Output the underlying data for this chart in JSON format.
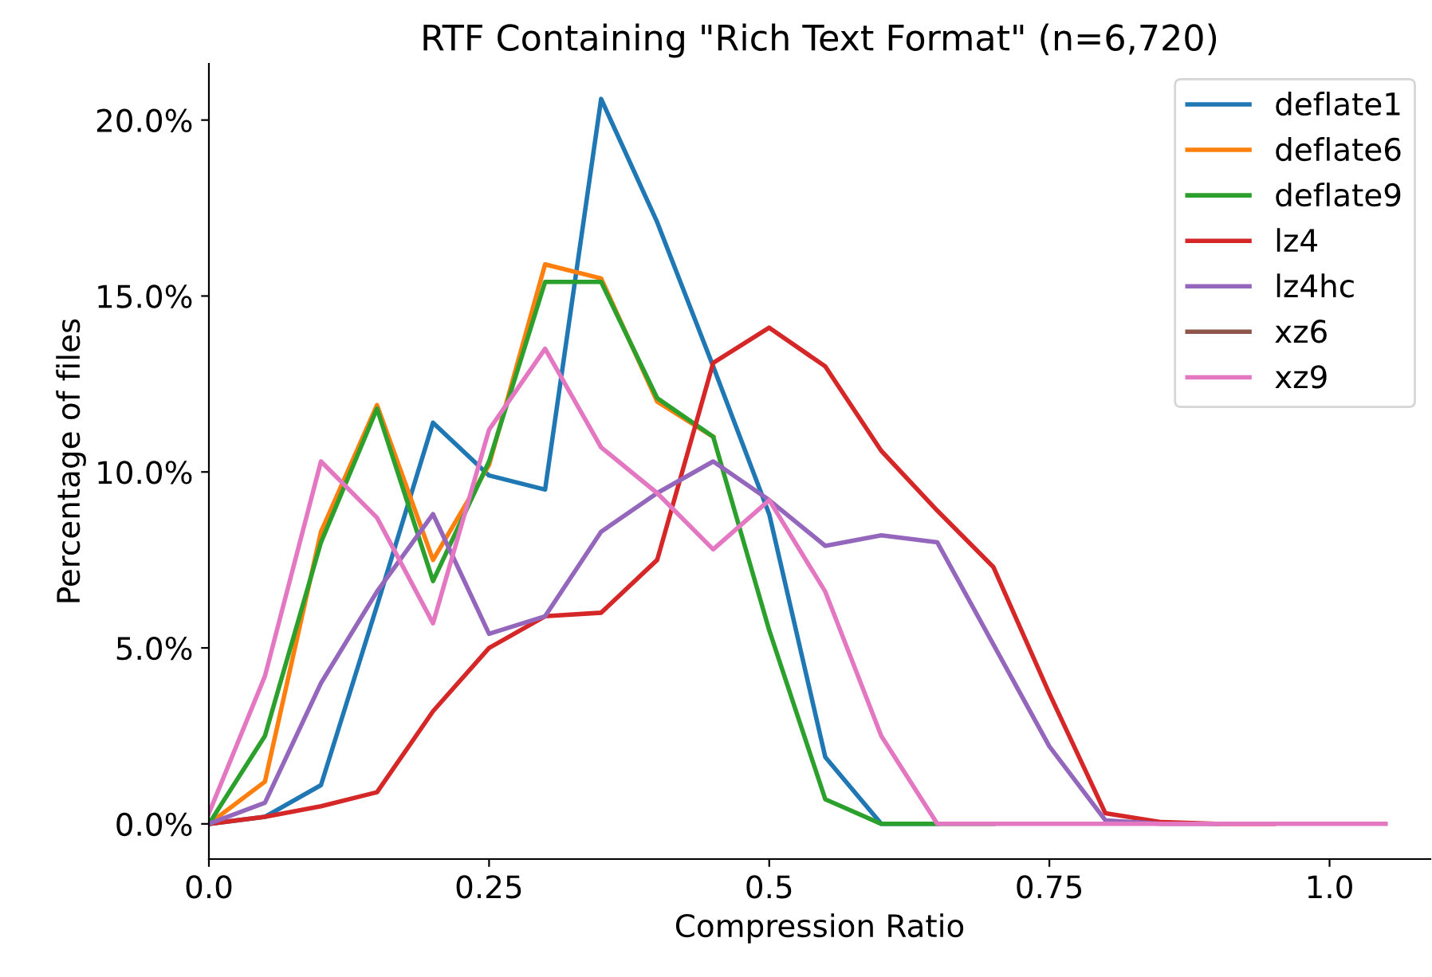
{
  "chart_data": {
    "type": "line",
    "title": "RTF Containing \"Rich Text Format\" (n=6,720)",
    "xlabel": "Compression Ratio",
    "ylabel": "Percentage of files",
    "x": [
      0,
      0.05,
      0.1,
      0.15,
      0.2,
      0.25,
      0.3,
      0.35,
      0.4,
      0.45,
      0.5,
      0.55,
      0.6,
      0.65,
      0.7,
      0.75,
      0.8,
      0.85,
      0.9,
      0.95,
      1.0,
      1.05
    ],
    "series": [
      {
        "name": "deflate1",
        "color": "#1f77b4",
        "values": [
          0,
          0.2,
          1.1,
          6.2,
          11.4,
          9.9,
          9.5,
          20.6,
          17.1,
          13.0,
          8.8,
          1.9,
          0,
          0,
          null,
          null,
          null,
          null,
          null,
          null,
          null,
          null
        ]
      },
      {
        "name": "deflate6",
        "color": "#ff7f0e",
        "values": [
          0,
          1.2,
          8.3,
          11.9,
          7.5,
          10.2,
          15.9,
          15.5,
          12.0,
          11.0,
          null,
          null,
          null,
          null,
          null,
          null,
          null,
          null,
          null,
          null,
          null,
          null
        ]
      },
      {
        "name": "deflate9",
        "color": "#2ca02c",
        "values": [
          0,
          2.5,
          8.0,
          11.8,
          6.9,
          10.3,
          15.4,
          15.4,
          12.1,
          11.0,
          5.5,
          0.7,
          0,
          0,
          0,
          null,
          null,
          null,
          null,
          null,
          null,
          null
        ]
      },
      {
        "name": "lz4",
        "color": "#d62728",
        "values": [
          0,
          0.2,
          0.5,
          0.9,
          3.2,
          5.0,
          5.9,
          6.0,
          7.5,
          13.1,
          14.1,
          13.0,
          10.6,
          8.9,
          7.3,
          3.7,
          0.3,
          0.05,
          0,
          0,
          null,
          null
        ]
      },
      {
        "name": "lz4hc",
        "color": "#9467bd",
        "values": [
          0,
          0.6,
          4.0,
          6.6,
          8.8,
          5.4,
          5.9,
          8.3,
          9.4,
          10.3,
          9.2,
          7.9,
          8.2,
          8.0,
          5.1,
          2.2,
          0.1,
          0,
          0,
          null,
          null,
          null
        ]
      },
      {
        "name": "xz6",
        "color": "#8c564b",
        "values": [
          null,
          null,
          null,
          null,
          null,
          null,
          null,
          null,
          null,
          null,
          null,
          null,
          null,
          null,
          null,
          null,
          null,
          null,
          null,
          null,
          null,
          null
        ]
      },
      {
        "name": "xz9",
        "color": "#e377c2",
        "values": [
          0.3,
          4.2,
          10.3,
          8.7,
          5.7,
          11.2,
          13.5,
          10.7,
          9.4,
          7.8,
          9.2,
          6.6,
          2.5,
          0,
          0,
          0,
          0,
          0,
          0,
          0,
          0,
          0
        ]
      }
    ],
    "xlim": [
      0,
      1.09
    ],
    "xticks": [
      {
        "value": 0,
        "label": "0.0"
      },
      0.25,
      0.5,
      0.75,
      {
        "value": 1,
        "label": "1.0"
      }
    ],
    "ylim": [
      -1.0,
      21.6
    ],
    "yticks": [
      {
        "value": 0,
        "label": "0.0%"
      },
      {
        "value": 5,
        "label": "5.0%"
      },
      {
        "value": 10,
        "label": "10.0%"
      },
      {
        "value": 15,
        "label": "15.0%"
      },
      {
        "value": 20,
        "label": "20.0%"
      }
    ],
    "legend": "top right",
    "grid": false
  }
}
